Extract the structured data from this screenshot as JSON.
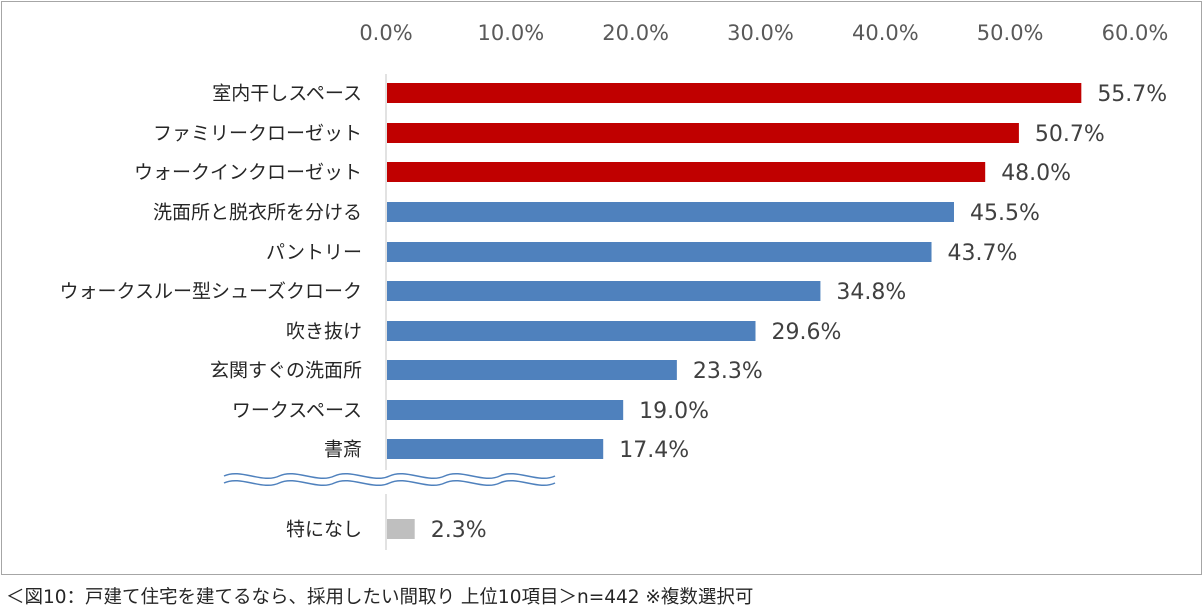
{
  "chart_data": {
    "type": "bar",
    "orientation": "horizontal",
    "xlim": [
      0,
      60
    ],
    "tick_values": [
      0,
      10,
      20,
      30,
      40,
      50,
      60
    ],
    "tick_labels": [
      "0.0%",
      "10.0%",
      "20.0%",
      "30.0%",
      "40.0%",
      "50.0%",
      "60.0%"
    ],
    "axis_position": "top",
    "grid": false,
    "categories": [
      "室内干しスペース",
      "ファミリークローゼット",
      "ウォークインクローゼット",
      "洗面所と脱衣所を分ける",
      "パントリー",
      "ウォークスルー型シューズクローク",
      "吹き抜け",
      "玄関すぐの洗面所",
      "ワークスペース",
      "書斎",
      "特になし"
    ],
    "values": [
      55.7,
      50.7,
      48.0,
      45.5,
      43.7,
      34.8,
      29.6,
      23.3,
      19.0,
      17.4,
      2.3
    ],
    "value_labels": [
      "55.7%",
      "50.7%",
      "48.0%",
      "45.5%",
      "43.7%",
      "34.8%",
      "29.6%",
      "23.3%",
      "19.0%",
      "17.4%",
      "2.3%"
    ],
    "bar_colors": [
      "#c00000",
      "#c00000",
      "#c00000",
      "#4f81bd",
      "#4f81bd",
      "#4f81bd",
      "#4f81bd",
      "#4f81bd",
      "#4f81bd",
      "#4f81bd",
      "#bfbfbf"
    ],
    "axis_break": true,
    "axis_break_color": "#4f81bd"
  },
  "caption": "＜図10：戸建て住宅を建てるなら、採用したい間取り 上位10項目＞n=442 ※複数選択可"
}
